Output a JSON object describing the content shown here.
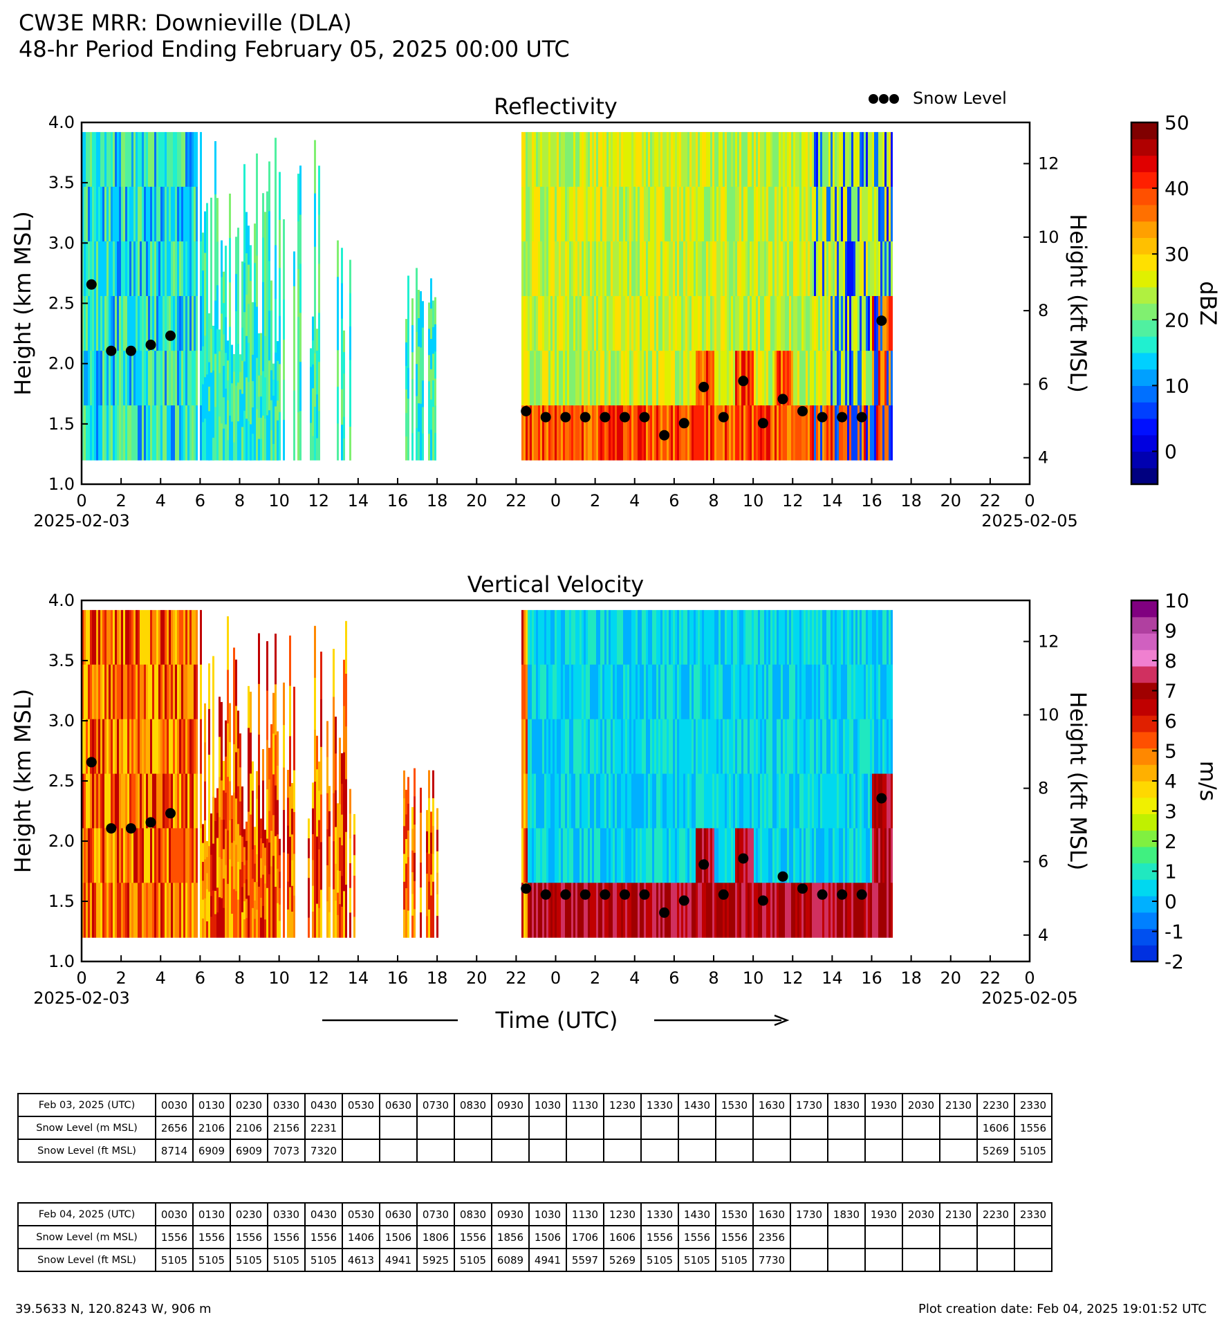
{
  "header": {
    "line1": "CW3E MRR: Downieville (DLA)",
    "line2": "48-hr Period Ending February 05, 2025 00:00 UTC"
  },
  "legend": {
    "snow_level_label": "Snow Level"
  },
  "x_axis": {
    "ticks": [
      "0",
      "2",
      "4",
      "6",
      "8",
      "10",
      "12",
      "14",
      "16",
      "18",
      "20",
      "22",
      "0",
      "2",
      "4",
      "6",
      "8",
      "10",
      "12",
      "14",
      "16",
      "18",
      "20",
      "22",
      "0"
    ],
    "start_date": "2025-02-03",
    "end_date": "2025-02-05",
    "label": "Time (UTC)"
  },
  "colors": {
    "snow_marker": "#000000",
    "reflectivity_scale": [
      "#000080",
      "#0000b0",
      "#0000e0",
      "#0010ff",
      "#0040ff",
      "#0070ff",
      "#00a0ff",
      "#00d0ff",
      "#20f0d0",
      "#50f0a0",
      "#80f070",
      "#b0f040",
      "#e0f000",
      "#ffe000",
      "#ffc000",
      "#ffa000",
      "#ff7000",
      "#ff5000",
      "#ff2000",
      "#e00000",
      "#b00000",
      "#800000"
    ],
    "velocity_scale": [
      "#0030e0",
      "#0050f0",
      "#0080ff",
      "#00b0ff",
      "#00d8f0",
      "#20e8c0",
      "#40f080",
      "#80f040",
      "#c0f000",
      "#f0f000",
      "#ffd800",
      "#ffb000",
      "#ff8800",
      "#ff5000",
      "#e02000",
      "#c00000",
      "#a00000",
      "#d03060",
      "#f080d0",
      "#d060c0",
      "#b040a0",
      "#800080"
    ]
  },
  "chart_data": [
    {
      "type": "heatmap",
      "title": "Reflectivity",
      "xlabel": "",
      "ylabel": "Height (km MSL)",
      "y2label": "Height (kft MSL)",
      "xlim_hours": [
        0,
        48
      ],
      "ylim": [
        1.0,
        4.0
      ],
      "y2lim_kft": [
        3.28,
        13.12
      ],
      "yticks": [
        "1.0",
        "1.5",
        "2.0",
        "2.5",
        "3.0",
        "3.5",
        "4.0"
      ],
      "y2ticks": [
        "4",
        "6",
        "8",
        "10",
        "12"
      ],
      "colorbar": {
        "label": "dBZ",
        "range": [
          -5,
          50
        ],
        "ticks": [
          "0",
          "10",
          "20",
          "30",
          "40",
          "50"
        ]
      },
      "data_gaps_hours": [
        [
          14,
          16.2
        ],
        [
          18,
          22.2
        ]
      ],
      "series": [
        {
          "name": "Snow Level",
          "x": [
            0.5,
            1.5,
            2.5,
            3.5,
            4.5,
            22.5,
            23.5,
            24.5,
            25.5,
            26.5,
            27.5,
            28.5,
            29.5,
            30.5,
            31.5,
            32.5,
            33.5,
            34.5,
            35.5,
            36.5,
            37.5,
            38.5,
            39.5,
            40.5
          ],
          "y": [
            2.656,
            2.106,
            2.106,
            2.156,
            2.231,
            1.606,
            1.556,
            1.556,
            1.556,
            1.556,
            1.556,
            1.556,
            1.406,
            1.506,
            1.806,
            1.556,
            1.856,
            1.506,
            1.706,
            1.606,
            1.556,
            1.556,
            1.556,
            2.356
          ]
        }
      ]
    },
    {
      "type": "heatmap",
      "title": "Vertical Velocity",
      "xlabel": "Time (UTC)",
      "ylabel": "Height (km MSL)",
      "y2label": "Height (kft MSL)",
      "xlim_hours": [
        0,
        48
      ],
      "ylim": [
        1.0,
        4.0
      ],
      "y2lim_kft": [
        3.28,
        13.12
      ],
      "yticks": [
        "1.0",
        "1.5",
        "2.0",
        "2.5",
        "3.0",
        "3.5",
        "4.0"
      ],
      "y2ticks": [
        "4",
        "6",
        "8",
        "10",
        "12"
      ],
      "colorbar": {
        "label": "m/s",
        "range": [
          -2,
          10
        ],
        "ticks": [
          "-2",
          "-1",
          "0",
          "1",
          "2",
          "3",
          "4",
          "5",
          "6",
          "7",
          "8",
          "9",
          "10"
        ]
      },
      "series": [
        {
          "name": "Snow Level",
          "x": [
            0.5,
            1.5,
            2.5,
            3.5,
            4.5,
            22.5,
            23.5,
            24.5,
            25.5,
            26.5,
            27.5,
            28.5,
            29.5,
            30.5,
            31.5,
            32.5,
            33.5,
            34.5,
            35.5,
            36.5,
            37.5,
            38.5,
            39.5,
            40.5
          ],
          "y": [
            2.656,
            2.106,
            2.106,
            2.156,
            2.231,
            1.606,
            1.556,
            1.556,
            1.556,
            1.556,
            1.556,
            1.556,
            1.406,
            1.506,
            1.806,
            1.556,
            1.856,
            1.506,
            1.706,
            1.606,
            1.556,
            1.556,
            1.556,
            2.356
          ]
        }
      ]
    },
    {
      "type": "table",
      "tables": [
        {
          "day_label": "Feb 03, 2025 (UTC)",
          "times": [
            "0030",
            "0130",
            "0230",
            "0330",
            "0430",
            "0530",
            "0630",
            "0730",
            "0830",
            "0930",
            "1030",
            "1130",
            "1230",
            "1330",
            "1430",
            "1530",
            "1630",
            "1730",
            "1830",
            "1930",
            "2030",
            "2130",
            "2230",
            "2330"
          ],
          "m_label": "Snow Level (m MSL)",
          "m": [
            "2656",
            "2106",
            "2106",
            "2156",
            "2231",
            "",
            "",
            "",
            "",
            "",
            "",
            "",
            "",
            "",
            "",
            "",
            "",
            "",
            "",
            "",
            "",
            "",
            "1606",
            "1556"
          ],
          "ft_label": "Snow Level (ft MSL)",
          "ft": [
            "8714",
            "6909",
            "6909",
            "7073",
            "7320",
            "",
            "",
            "",
            "",
            "",
            "",
            "",
            "",
            "",
            "",
            "",
            "",
            "",
            "",
            "",
            "",
            "",
            "5269",
            "5105"
          ]
        },
        {
          "day_label": "Feb 04, 2025 (UTC)",
          "times": [
            "0030",
            "0130",
            "0230",
            "0330",
            "0430",
            "0530",
            "0630",
            "0730",
            "0830",
            "0930",
            "1030",
            "1130",
            "1230",
            "1330",
            "1430",
            "1530",
            "1630",
            "1730",
            "1830",
            "1930",
            "2030",
            "2130",
            "2230",
            "2330"
          ],
          "m_label": "Snow Level (m MSL)",
          "m": [
            "1556",
            "1556",
            "1556",
            "1556",
            "1556",
            "1406",
            "1506",
            "1806",
            "1556",
            "1856",
            "1506",
            "1706",
            "1606",
            "1556",
            "1556",
            "1556",
            "2356",
            "",
            "",
            "",
            "",
            "",
            "",
            ""
          ],
          "ft_label": "Snow Level (ft MSL)",
          "ft": [
            "5105",
            "5105",
            "5105",
            "5105",
            "5105",
            "4613",
            "4941",
            "5925",
            "5105",
            "6089",
            "4941",
            "5597",
            "5269",
            "5105",
            "5105",
            "5105",
            "7730",
            "",
            "",
            "",
            "",
            "",
            "",
            ""
          ]
        }
      ]
    }
  ],
  "footer": {
    "location": "39.5633 N, 120.8243 W, 906 m",
    "created": "Plot creation date: Feb 04, 2025 19:01:52 UTC"
  }
}
